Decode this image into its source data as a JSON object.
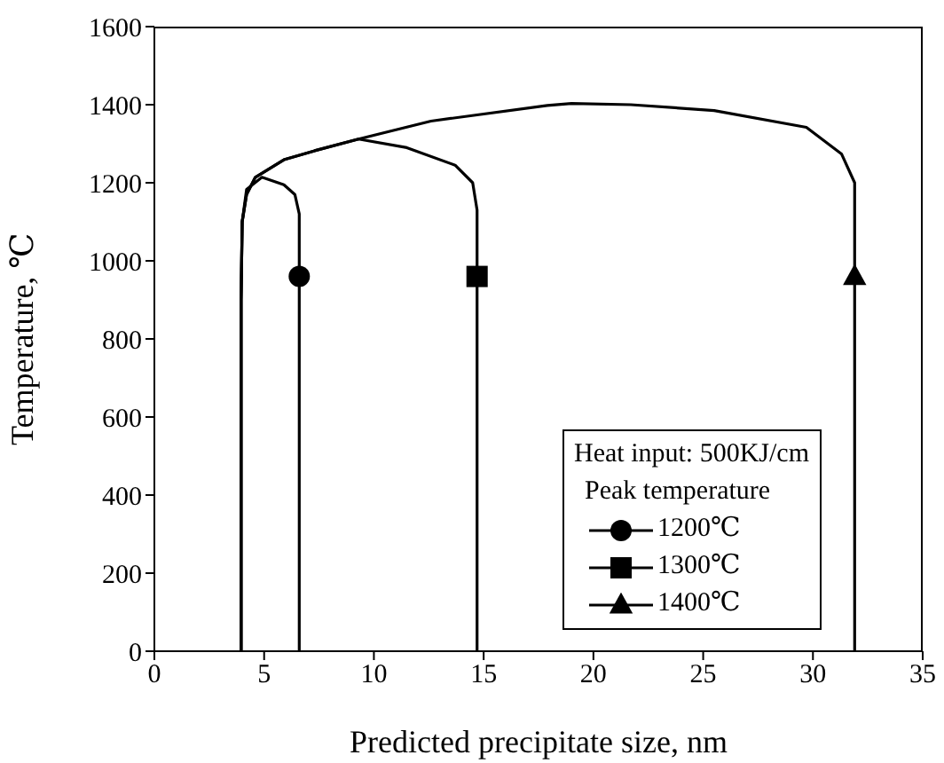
{
  "chart_data": {
    "type": "line",
    "xlabel": "Predicted precipitate size, nm",
    "ylabel": "Temperature, ℃",
    "legend_title": "Peak temperature",
    "annotations": [
      "Heat input: 500KJ/cm"
    ],
    "xlim": [
      0,
      35
    ],
    "xticks": [
      0,
      5,
      10,
      15,
      20,
      25,
      30,
      35
    ],
    "ylim": [
      0,
      1600
    ],
    "yticks": [
      0,
      200,
      400,
      600,
      800,
      1000,
      1200,
      1400,
      1600
    ],
    "grid": false,
    "legend": "bottom right",
    "series": [
      {
        "name": "1200℃",
        "color": "#000000",
        "x": [
          3.95,
          3.95,
          4.0,
          4.2,
          4.9,
          5.9,
          6.4,
          6.6,
          6.6
        ],
        "values": [
          0,
          900,
          1100,
          1183,
          1214,
          1195,
          1170,
          1120,
          0
        ]
      },
      {
        "type": "scatter",
        "marker": "circle",
        "color": "#000000",
        "x": [
          6.6
        ],
        "values": [
          960
        ]
      },
      {
        "name": "1300℃",
        "color": "#000000",
        "x": [
          3.95,
          3.95,
          4.0,
          4.2,
          4.6,
          5.9,
          7.3,
          9.3,
          11.5,
          13.7,
          14.5,
          14.7,
          14.7
        ],
        "values": [
          0,
          900,
          1100,
          1170,
          1214,
          1259,
          1282,
          1312,
          1290,
          1245,
          1200,
          1130,
          0
        ]
      },
      {
        "type": "scatter",
        "marker": "square",
        "color": "#000000",
        "x": [
          14.7
        ],
        "values": [
          960
        ]
      },
      {
        "name": "1400℃",
        "color": "#000000",
        "x": [
          3.95,
          3.95,
          4.0,
          4.2,
          4.6,
          5.9,
          7.3,
          9.3,
          12.6,
          17.9,
          19.0,
          21.7,
          25.5,
          29.7,
          31.3,
          31.9,
          31.9
        ],
        "values": [
          0,
          900,
          1100,
          1170,
          1214,
          1259,
          1282,
          1312,
          1358,
          1398,
          1403,
          1400,
          1385,
          1342,
          1274,
          1200,
          0
        ]
      },
      {
        "type": "scatter",
        "marker": "triangle",
        "color": "#000000",
        "x": [
          31.9
        ],
        "values": [
          960
        ]
      }
    ]
  }
}
